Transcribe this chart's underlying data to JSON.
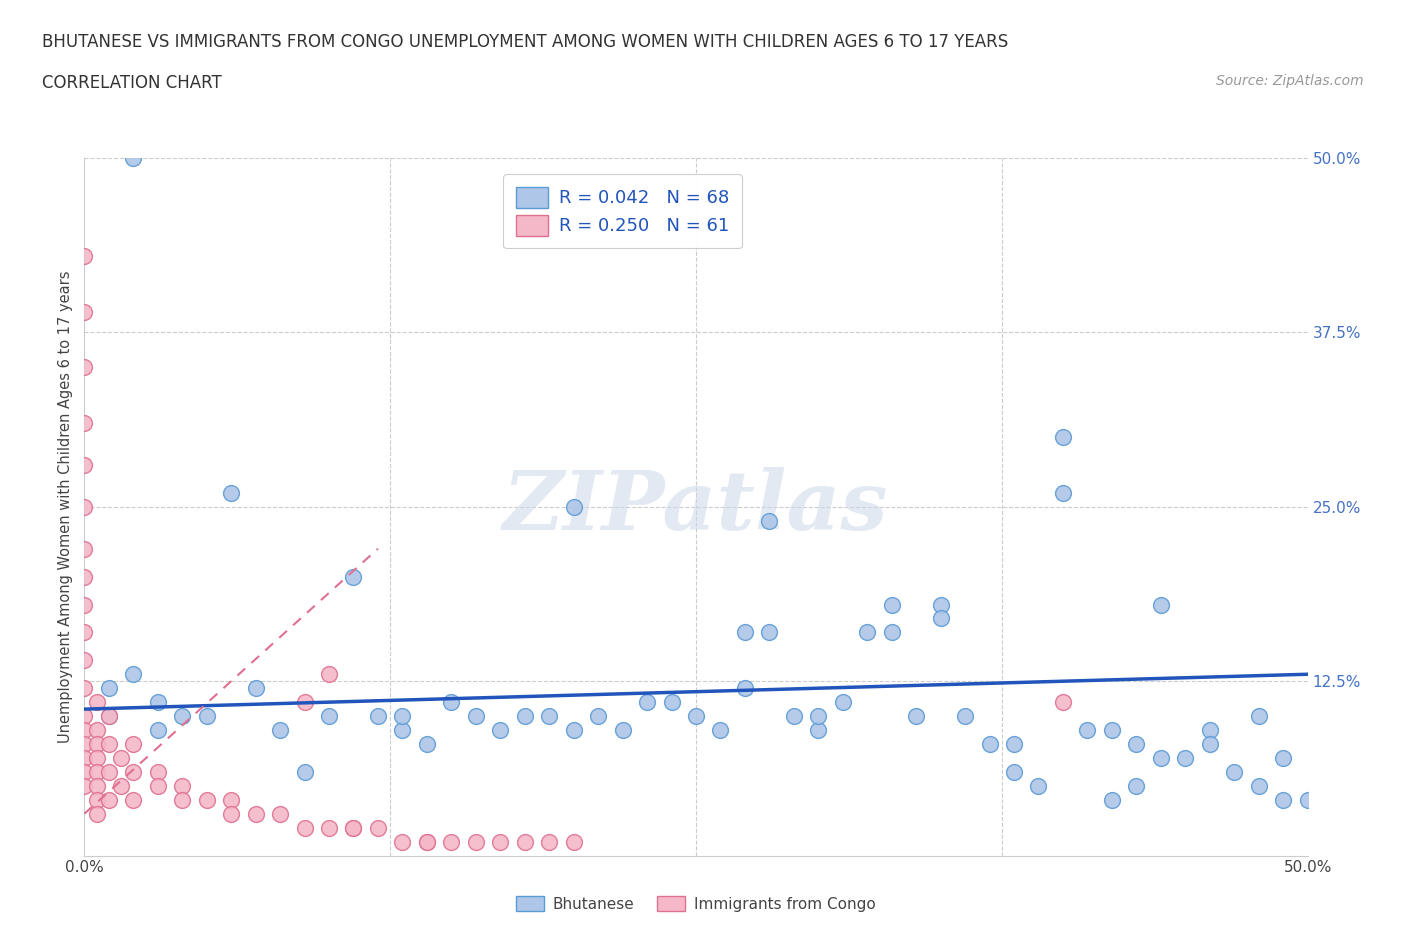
{
  "title": "BHUTANESE VS IMMIGRANTS FROM CONGO UNEMPLOYMENT AMONG WOMEN WITH CHILDREN AGES 6 TO 17 YEARS",
  "subtitle": "CORRELATION CHART",
  "source": "Source: ZipAtlas.com",
  "ylabel": "Unemployment Among Women with Children Ages 6 to 17 years",
  "xlim": [
    0,
    0.5
  ],
  "ylim": [
    0,
    0.5
  ],
  "bhutanese_color": "#aec6e8",
  "bhutanese_edge_color": "#5b9bd5",
  "congo_color": "#f4b8c8",
  "congo_edge_color": "#e07090",
  "trend_blue_color": "#2255bb",
  "trend_pink_color": "#e07090",
  "watermark_text": "ZIPatlas",
  "legend_label1": "R = 0.042   N = 68",
  "legend_label2": "R = 0.250   N = 61",
  "blue_trend_x0": 0.0,
  "blue_trend_y0": 0.105,
  "blue_trend_x1": 0.5,
  "blue_trend_y1": 0.13,
  "pink_trend_x0": 0.0,
  "pink_trend_y0": 0.03,
  "pink_trend_x1": 0.12,
  "pink_trend_y1": 0.22,
  "bhutanese_x": [
    0.02,
    0.01,
    0.01,
    0.02,
    0.03,
    0.03,
    0.04,
    0.05,
    0.06,
    0.07,
    0.08,
    0.09,
    0.1,
    0.11,
    0.12,
    0.13,
    0.14,
    0.15,
    0.16,
    0.17,
    0.18,
    0.19,
    0.2,
    0.21,
    0.22,
    0.23,
    0.24,
    0.25,
    0.26,
    0.27,
    0.27,
    0.28,
    0.29,
    0.3,
    0.3,
    0.31,
    0.32,
    0.33,
    0.34,
    0.35,
    0.36,
    0.37,
    0.38,
    0.39,
    0.4,
    0.41,
    0.42,
    0.43,
    0.44,
    0.45,
    0.46,
    0.47,
    0.48,
    0.49,
    0.13,
    0.2,
    0.28,
    0.35,
    0.4,
    0.42,
    0.44,
    0.46,
    0.48,
    0.5,
    0.33,
    0.38,
    0.43,
    0.49
  ],
  "bhutanese_y": [
    0.5,
    0.1,
    0.12,
    0.13,
    0.09,
    0.11,
    0.1,
    0.1,
    0.26,
    0.12,
    0.09,
    0.06,
    0.1,
    0.2,
    0.1,
    0.09,
    0.08,
    0.11,
    0.1,
    0.09,
    0.1,
    0.1,
    0.09,
    0.1,
    0.09,
    0.11,
    0.11,
    0.1,
    0.09,
    0.16,
    0.12,
    0.16,
    0.1,
    0.09,
    0.1,
    0.11,
    0.16,
    0.18,
    0.1,
    0.18,
    0.1,
    0.08,
    0.08,
    0.05,
    0.3,
    0.09,
    0.09,
    0.05,
    0.18,
    0.07,
    0.09,
    0.06,
    0.1,
    0.04,
    0.1,
    0.25,
    0.24,
    0.17,
    0.26,
    0.04,
    0.07,
    0.08,
    0.05,
    0.04,
    0.16,
    0.06,
    0.08,
    0.07
  ],
  "congo_x": [
    0.0,
    0.0,
    0.0,
    0.0,
    0.0,
    0.0,
    0.0,
    0.0,
    0.0,
    0.0,
    0.0,
    0.0,
    0.0,
    0.0,
    0.0,
    0.0,
    0.0,
    0.0,
    0.005,
    0.005,
    0.005,
    0.005,
    0.005,
    0.005,
    0.005,
    0.005,
    0.01,
    0.01,
    0.01,
    0.01,
    0.015,
    0.015,
    0.02,
    0.02,
    0.02,
    0.03,
    0.03,
    0.04,
    0.04,
    0.05,
    0.06,
    0.06,
    0.07,
    0.08,
    0.09,
    0.1,
    0.11,
    0.12,
    0.13,
    0.14,
    0.4,
    0.1,
    0.09,
    0.11,
    0.14,
    0.15,
    0.16,
    0.17,
    0.18,
    0.19,
    0.2
  ],
  "congo_y": [
    0.43,
    0.39,
    0.35,
    0.31,
    0.28,
    0.25,
    0.22,
    0.2,
    0.18,
    0.16,
    0.14,
    0.12,
    0.1,
    0.09,
    0.08,
    0.07,
    0.06,
    0.05,
    0.11,
    0.09,
    0.08,
    0.07,
    0.06,
    0.05,
    0.04,
    0.03,
    0.1,
    0.08,
    0.06,
    0.04,
    0.07,
    0.05,
    0.08,
    0.06,
    0.04,
    0.06,
    0.05,
    0.05,
    0.04,
    0.04,
    0.04,
    0.03,
    0.03,
    0.03,
    0.02,
    0.02,
    0.02,
    0.02,
    0.01,
    0.01,
    0.11,
    0.13,
    0.11,
    0.02,
    0.01,
    0.01,
    0.01,
    0.01,
    0.01,
    0.01,
    0.01
  ]
}
